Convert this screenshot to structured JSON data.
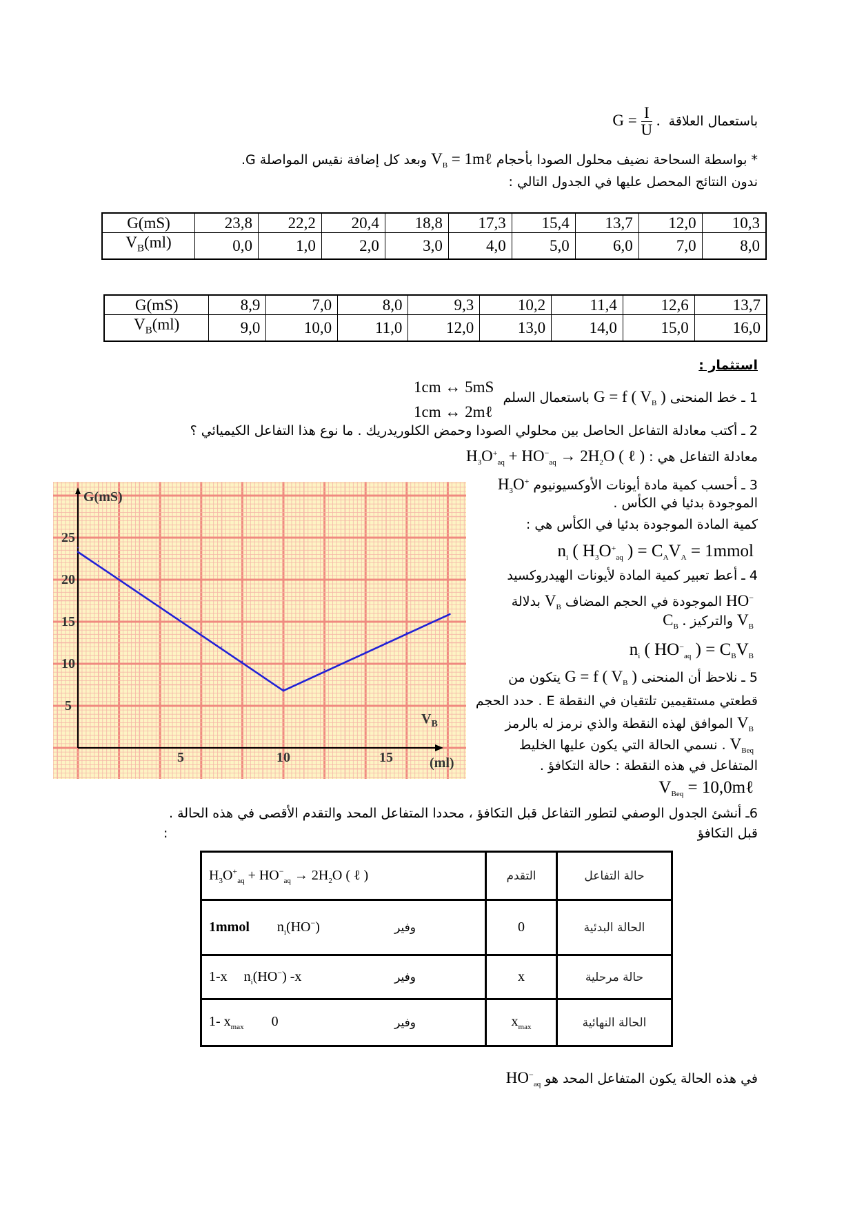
{
  "intro": {
    "l1_text": "باستعمال العلاقة",
    "l1_formula_lhs": "G =",
    "l1_num": "I",
    "l1_den": "U",
    "l1_end": ".",
    "l2_text_a": "* بواسطة السحاحة نضيف  محلول الصودا بأحجام",
    "l2_formula": [
      [
        "V",
        ""
      ],
      [
        "B",
        "sub"
      ],
      [
        " = 1mℓ",
        ""
      ]
    ],
    "l2_text_b": "وبعد كل إضافة نقيس المواصلة G.",
    "l3_text": "ندون النتائج المحصل عليها في الجدول التالي :"
  },
  "table1": {
    "row_g_label": "G(mS)",
    "row_v_label": [
      "V",
      "B",
      "(ml)"
    ],
    "g": [
      "23,8",
      "22,2",
      "20,4",
      "18,8",
      "17,3",
      "15,4",
      "13,7",
      "12,0",
      "10,3"
    ],
    "v": [
      "0,0",
      "1,0",
      "2,0",
      "3,0",
      "4,0",
      "5,0",
      "6,0",
      "7,0",
      "8,0"
    ]
  },
  "table2": {
    "row_g_label": "G(mS)",
    "row_v_label": [
      "V",
      "B",
      "(ml)"
    ],
    "g": [
      "8,9",
      "7,0",
      "8,0",
      "9,3",
      "10,2",
      "11,4",
      "12,6",
      "13,7"
    ],
    "v": [
      "9,0",
      "10,0",
      "11,0",
      "12,0",
      "13,0",
      "14,0",
      "15,0",
      "16,0"
    ]
  },
  "exploitation": {
    "title": "استثمار :",
    "q1_text_a": "1 ـ خط المنحنى",
    "q1_formula": [
      [
        "G = f ( V",
        ""
      ],
      [
        "B",
        "sub"
      ],
      [
        " )",
        ""
      ]
    ],
    "q1_text_b": "باستعمال السلم",
    "scale_1": "1cm ↔ 5mS",
    "scale_2": "1cm ↔ 2mℓ",
    "q2_text": "2 ـ أكتب معادلة التفاعل الحاصل بين محلولي الصودا وحمض الكلوريدريك . ما نوع هذا التفاعل الكيميائي ؟",
    "q2_answer_text": "معادلة التفاعل هي :",
    "q2_answer_formula": [
      [
        "H",
        ""
      ],
      [
        "3",
        "sub"
      ],
      [
        "O",
        ""
      ],
      [
        "+",
        "sup"
      ],
      [
        "aq",
        "sub"
      ],
      [
        " + HO",
        ""
      ],
      [
        "−",
        "sup"
      ],
      [
        "aq",
        "sub"
      ],
      [
        " → 2H",
        ""
      ],
      [
        "2",
        "sub"
      ],
      [
        "O ( ℓ )",
        ""
      ]
    ],
    "q3_text": "3 ـ أحسب كمية مادة أيونات الأوكسيونيوم",
    "q3_formula": [
      [
        "H",
        ""
      ],
      [
        "3",
        "sub"
      ],
      [
        "O",
        ""
      ],
      [
        "+",
        "sup"
      ]
    ],
    "q3_text_b": "الموجودة بدئيا في الكأس .",
    "q3_answer_text": "كمية المادة الموجودة بدئيا في الكأس هي :",
    "q3_answer_formula": [
      [
        "n",
        ""
      ],
      [
        "i",
        "sub"
      ],
      [
        " ( H",
        ""
      ],
      [
        "3",
        "sub"
      ],
      [
        "O",
        ""
      ],
      [
        "+",
        "sup"
      ],
      [
        "aq",
        "sub"
      ],
      [
        " ) = C",
        ""
      ],
      [
        "A",
        "sub"
      ],
      [
        "V",
        ""
      ],
      [
        "A",
        "sub"
      ],
      [
        " = 1mmol",
        ""
      ]
    ],
    "q4_text": "4 ـ أعط تعبير كمية المادة لأيونات الهيدروكسيد",
    "q4_formula_ho": [
      [
        "HO",
        ""
      ],
      [
        "−",
        "sup"
      ]
    ],
    "q4_text_b": "الموجودة في الحجم المضاف",
    "q4_formula_vb": [
      [
        "V",
        ""
      ],
      [
        "B",
        "sub"
      ]
    ],
    "q4_text_c": "بدلالة",
    "q4_formula_vb2": [
      [
        "V",
        ""
      ],
      [
        "B",
        "sub"
      ]
    ],
    "q4_text_d": "والتركيز",
    "q4_formula_cb": [
      [
        "C",
        ""
      ],
      [
        "B",
        "sub"
      ],
      [
        " .",
        ""
      ]
    ],
    "q4_answer_formula": [
      [
        "n",
        ""
      ],
      [
        "i",
        "sub"
      ],
      [
        " ( HO",
        ""
      ],
      [
        "−",
        "sup"
      ],
      [
        "aq",
        "sub"
      ],
      [
        " ) = C",
        ""
      ],
      [
        "B",
        "sub"
      ],
      [
        "V",
        ""
      ],
      [
        "B",
        "sub"
      ]
    ],
    "q5_text_a": "5 ـ نلاحظ أن المنحنى",
    "q5_formula": [
      [
        "G = f ( V",
        ""
      ],
      [
        "B",
        "sub"
      ],
      [
        " )",
        ""
      ]
    ],
    "q5_text_b": "يتكون من",
    "q5_line2": "قطعتي مستقيمين تلتقيان في النقطة E . حدد الحجم",
    "q5_line3_formula": [
      [
        "V",
        ""
      ],
      [
        "B",
        "sub"
      ]
    ],
    "q5_line3": "الموافق لهذه النقطة والذي نرمز له بالرمز",
    "q5_line4_formula": [
      [
        "V",
        ""
      ],
      [
        "Beq",
        "sub"
      ]
    ],
    "q5_line4": ". نسمي الحالة التي يكون عليها الخليط",
    "q5_line5": "المتفاعل في هذه النقطة : حالة التكافؤ .",
    "q5_answer_formula": [
      [
        "V",
        ""
      ],
      [
        "Beq",
        "sub"
      ],
      [
        " = 10,0mℓ",
        ""
      ]
    ],
    "q6_text": "6ـ أنشئ الجدول الوصفي لتطور التفاعل قبل التكافؤ ، محددا المتفاعل المحد والتقدم الأقصى في هذه الحالة .",
    "q6_sub": "قبل التكافؤ",
    "q6_colon": ":"
  },
  "advancement_table": {
    "header_equation": [
      [
        "H",
        ""
      ],
      [
        "3",
        "sub"
      ],
      [
        "O",
        ""
      ],
      [
        "+",
        "sup"
      ],
      [
        "aq",
        "sub"
      ],
      [
        "   +   HO",
        ""
      ],
      [
        "−",
        "sup"
      ],
      [
        "aq",
        "sub"
      ],
      [
        "   →      2H",
        ""
      ],
      [
        "2",
        "sub"
      ],
      [
        "O ( ℓ )",
        ""
      ]
    ],
    "header_advance": "التقدم",
    "header_state": "حالة التفاعل",
    "rows": [
      {
        "state": "الحالة البدئية",
        "advance": "0",
        "h3o": "1mmol",
        "ho": [
          [
            "n",
            ""
          ],
          [
            "i",
            "sub"
          ],
          [
            "(HO",
            ""
          ],
          [
            "−",
            "sup"
          ],
          [
            ")",
            ""
          ]
        ],
        "water": "وفير"
      },
      {
        "state": "حالة مرحلية",
        "advance": "x",
        "h3o": "1-x",
        "ho": [
          [
            "n",
            ""
          ],
          [
            "i",
            "sub"
          ],
          [
            "(HO",
            ""
          ],
          [
            "−",
            "sup"
          ],
          [
            ")  -x",
            ""
          ]
        ],
        "water": "وفير"
      },
      {
        "state": "الحالة النهائية",
        "advance_formula": [
          [
            "x",
            ""
          ],
          [
            "max",
            "sub"
          ]
        ],
        "h3o_formula": [
          [
            "1- x",
            ""
          ],
          [
            "max",
            "sub"
          ]
        ],
        "ho_text": "0",
        "water": "وفير"
      }
    ]
  },
  "conclusion": {
    "text": "في هذه الحالة يكون المتفاعل المحد هو",
    "formula": [
      [
        "HO",
        ""
      ],
      [
        "−",
        "sup"
      ],
      [
        "aq",
        "sub"
      ]
    ]
  },
  "chart_data": {
    "type": "line",
    "title": "",
    "ylabel": "G(mS)",
    "xlabel": [
      "V",
      "B",
      "(ml)"
    ],
    "x_ticks": [
      "5",
      "10",
      "15"
    ],
    "y_ticks": [
      "5",
      "10",
      "15",
      "20",
      "25"
    ],
    "xlim": [
      -0.6,
      19.5
    ],
    "ylim": [
      -3.6,
      31.8
    ],
    "grid": true,
    "x": [
      0,
      1,
      2,
      3,
      4,
      5,
      6,
      7,
      8,
      9,
      10,
      11,
      12,
      13,
      14,
      15,
      16
    ],
    "y": [
      23.8,
      22.2,
      20.4,
      18.8,
      17.3,
      15.4,
      13.7,
      12.0,
      10.3,
      8.9,
      7.0,
      8.0,
      9.3,
      10.2,
      11.4,
      12.6,
      13.7
    ],
    "drawn_line": [
      [
        0,
        23.3
      ],
      [
        10,
        6.8
      ],
      [
        18.1,
        15.9
      ]
    ],
    "colors": {
      "line": "#2121d6",
      "paper": "#fdf4c4",
      "grid_minor": "#f6b6a8",
      "grid_major": "#f08a80"
    }
  }
}
